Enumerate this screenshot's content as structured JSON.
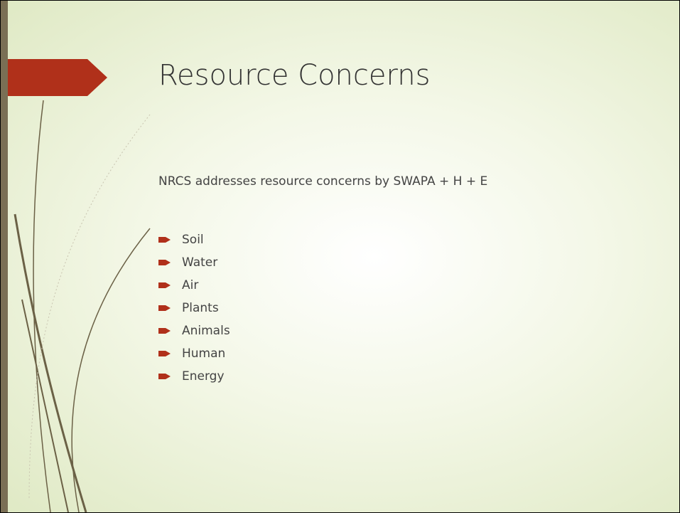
{
  "slide": {
    "title": "Resource Concerns",
    "intro": "NRCS addresses resource concerns by SWAPA + H + E",
    "bullets": [
      "Soil",
      "Water",
      "Air",
      "Plants",
      "Animals",
      "Human",
      "Energy"
    ]
  }
}
